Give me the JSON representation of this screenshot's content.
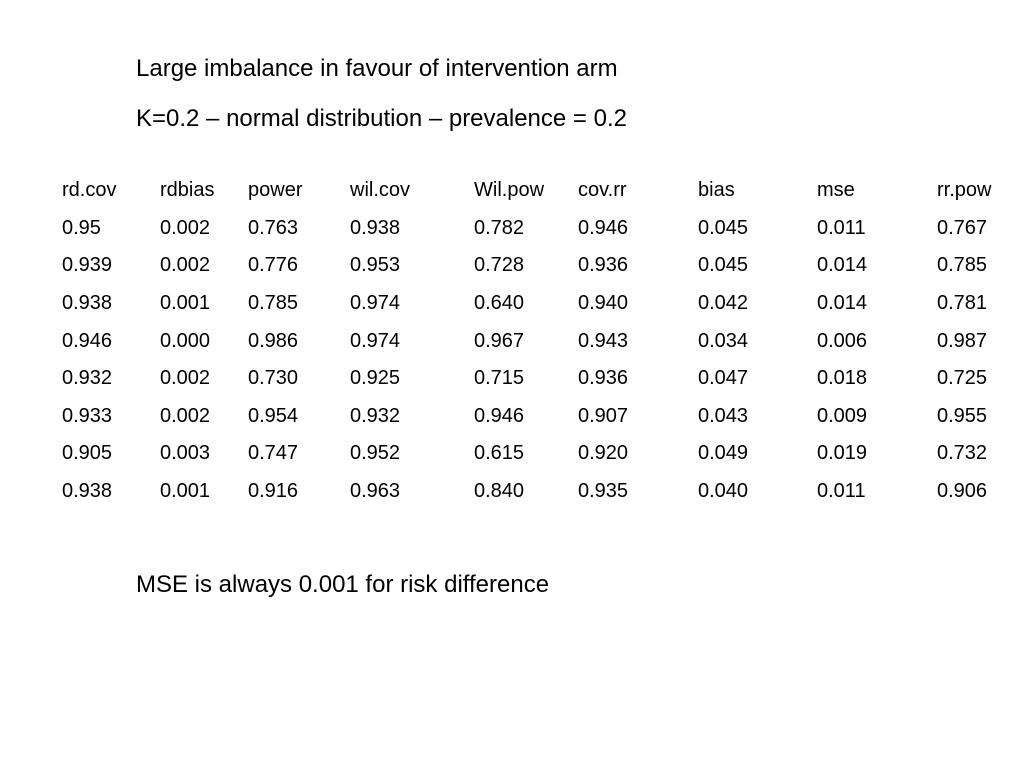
{
  "heading_line1": "Large imbalance in favour of intervention arm",
  "heading_line2": "K=0.2 – normal distribution – prevalence = 0.2",
  "table": {
    "headers": [
      "rd.cov",
      "rdbias",
      "power",
      "wil.cov",
      "Wil.pow",
      "cov.rr",
      "bias",
      "mse",
      "rr.pow"
    ],
    "rows": [
      [
        "0.95",
        "0.002",
        "0.763",
        "0.938",
        "0.782",
        "0.946",
        "0.045",
        "0.011",
        "0.767"
      ],
      [
        "0.939",
        "0.002",
        "0.776",
        "0.953",
        "0.728",
        "0.936",
        "0.045",
        "0.014",
        "0.785"
      ],
      [
        "0.938",
        "0.001",
        "0.785",
        "0.974",
        "0.640",
        "0.940",
        "0.042",
        "0.014",
        "0.781"
      ],
      [
        "0.946",
        "0.000",
        "0.986",
        "0.974",
        "0.967",
        "0.943",
        "0.034",
        "0.006",
        "0.987"
      ],
      [
        "0.932",
        "0.002",
        "0.730",
        "0.925",
        "0.715",
        "0.936",
        "0.047",
        "0.018",
        "0.725"
      ],
      [
        "0.933",
        "0.002",
        "0.954",
        "0.932",
        "0.946",
        "0.907",
        "0.043",
        "0.009",
        "0.955"
      ],
      [
        "0.905",
        "0.003",
        "0.747",
        "0.952",
        "0.615",
        "0.920",
        "0.049",
        "0.019",
        "0.732"
      ],
      [
        "0.938",
        "0.001",
        "0.916",
        "0.963",
        "0.840",
        "0.935",
        "0.040",
        "0.011",
        "0.906"
      ]
    ]
  },
  "footnote": "MSE is always 0.001 for risk difference"
}
